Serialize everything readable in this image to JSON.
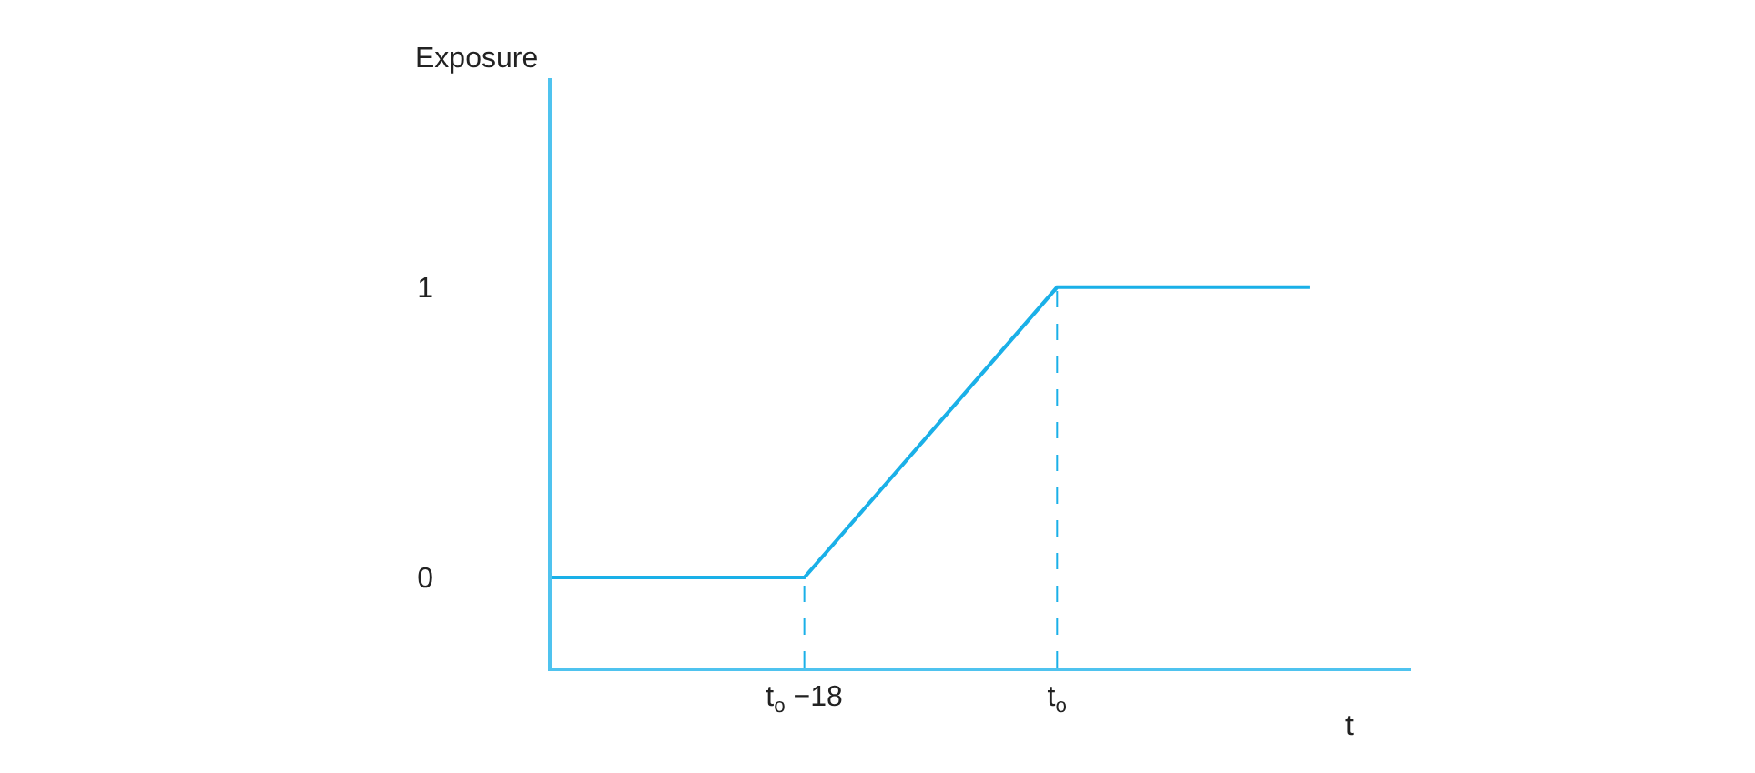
{
  "chart_data": {
    "type": "line",
    "xlabel": "t",
    "ylabel": "Exposure",
    "categories": [
      null,
      "t$_{o}$ −18",
      "t$_{o}$",
      null
    ],
    "series": [
      {
        "color": "#1ab0e8",
        "values": [
          0,
          0,
          1,
          1
        ]
      }
    ],
    "ylim": [
      -0.31,
      1.72
    ],
    "yticks": [
      0,
      1
    ],
    "ref_lines": [
      {
        "axis": "x",
        "value": "t$_{o}$ −18",
        "color": "#1ab0e8",
        "line_style": "dashed"
      },
      {
        "axis": "x",
        "value": "t$_{o}$",
        "color": "#1ab0e8",
        "line_style": "dashed"
      }
    ],
    "legend": false,
    "marker": "none",
    "line_style": "solid"
  }
}
